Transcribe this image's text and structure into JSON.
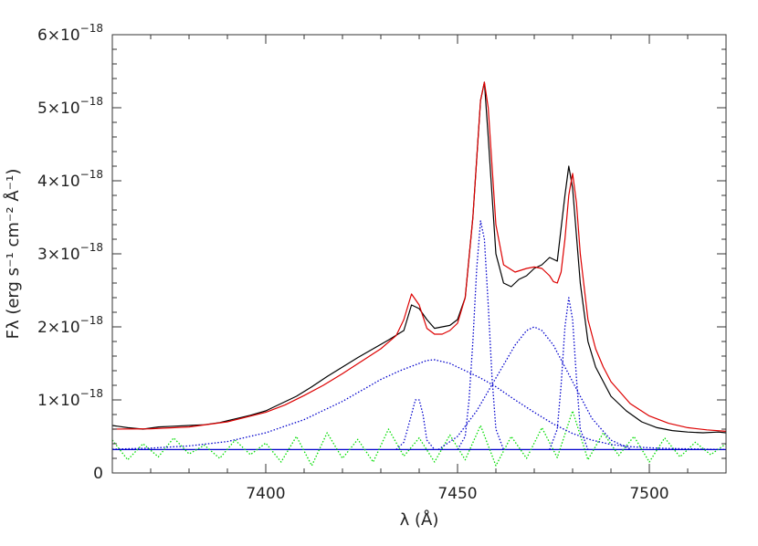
{
  "chart_data": {
    "type": "line",
    "title": "",
    "xlabel": "λ (Å)",
    "ylabel": "Fλ (erg s⁻¹ cm⁻² Å⁻¹)",
    "xlim": [
      7360,
      7520
    ],
    "ylim": [
      0,
      6e-18
    ],
    "grid": false,
    "legend": "none",
    "x_ticks": [
      {
        "value": 7400,
        "label": "7400"
      },
      {
        "value": 7450,
        "label": "7450"
      },
      {
        "value": 7500,
        "label": "7500"
      }
    ],
    "y_ticks": [
      {
        "value": 0,
        "mantissa": "0",
        "exponent": ""
      },
      {
        "value": 1e-18,
        "mantissa": "1×10",
        "exponent": "−18"
      },
      {
        "value": 2e-18,
        "mantissa": "2×10",
        "exponent": "−18"
      },
      {
        "value": 3e-18,
        "mantissa": "3×10",
        "exponent": "−18"
      },
      {
        "value": 4e-18,
        "mantissa": "4×10",
        "exponent": "−18"
      },
      {
        "value": 5e-18,
        "mantissa": "5×10",
        "exponent": "−18"
      },
      {
        "value": 6e-18,
        "mantissa": "6×10",
        "exponent": "−18"
      }
    ],
    "colors": {
      "observed": "#000000",
      "model": "#dd0000",
      "components": "#0000cc",
      "residual": "#00dd00",
      "continuum": "#0000cc"
    },
    "continuum": {
      "x": [
        7360,
        7520
      ],
      "y": [
        3.2e-19,
        3.2e-19
      ]
    },
    "series": [
      {
        "style": "solid",
        "color": "#000000",
        "x": [
          7360,
          7364,
          7368,
          7372,
          7376,
          7380,
          7384,
          7388,
          7392,
          7396,
          7400,
          7404,
          7408,
          7412,
          7416,
          7420,
          7424,
          7428,
          7432,
          7436,
          7438,
          7440,
          7442,
          7444,
          7446,
          7448,
          7450,
          7452,
          7454,
          7456,
          7457,
          7458,
          7460,
          7462,
          7464,
          7466,
          7468,
          7470,
          7472,
          7474,
          7476,
          7478,
          7479,
          7480,
          7482,
          7484,
          7486,
          7488,
          7490,
          7494,
          7498,
          7502,
          7506,
          7510,
          7514,
          7518,
          7520
        ],
        "y": [
          6.5e-19,
          6.2e-19,
          6e-19,
          6.3e-19,
          6.4e-19,
          6.5e-19,
          6.6e-19,
          6.9e-19,
          7.4e-19,
          7.9e-19,
          8.5e-19,
          9.5e-19,
          1.05e-18,
          1.18e-18,
          1.32e-18,
          1.45e-18,
          1.58e-18,
          1.7e-18,
          1.82e-18,
          1.95e-18,
          2.3e-18,
          2.25e-18,
          2.1e-18,
          1.98e-18,
          2e-18,
          2.02e-18,
          2.1e-18,
          2.4e-18,
          3.5e-18,
          5.1e-18,
          5.35e-18,
          4.6e-18,
          3e-18,
          2.6e-18,
          2.55e-18,
          2.65e-18,
          2.7e-18,
          2.8e-18,
          2.85e-18,
          2.95e-18,
          2.9e-18,
          3.8e-18,
          4.2e-18,
          3.9e-18,
          2.6e-18,
          1.8e-18,
          1.45e-18,
          1.25e-18,
          1.05e-18,
          8.5e-19,
          7e-19,
          6.2e-19,
          5.8e-19,
          5.6e-19,
          5.5e-19,
          5.6e-19,
          5.5e-19
        ]
      },
      {
        "style": "solid",
        "color": "#dd0000",
        "x": [
          7360,
          7370,
          7380,
          7390,
          7400,
          7405,
          7410,
          7415,
          7420,
          7425,
          7430,
          7434,
          7436,
          7438,
          7440,
          7442,
          7444,
          7446,
          7448,
          7450,
          7452,
          7454,
          7455,
          7456,
          7457,
          7458,
          7459,
          7460,
          7462,
          7465,
          7468,
          7470,
          7472,
          7474,
          7475,
          7476,
          7477,
          7478,
          7479,
          7480,
          7481,
          7482,
          7484,
          7486,
          7488,
          7490,
          7495,
          7500,
          7505,
          7510,
          7515,
          7520
        ],
        "y": [
          6e-19,
          6.05e-19,
          6.3e-19,
          7e-19,
          8.3e-19,
          9.3e-19,
          1.06e-18,
          1.2e-18,
          1.36e-18,
          1.53e-18,
          1.7e-18,
          1.88e-18,
          2.1e-18,
          2.45e-18,
          2.3e-18,
          1.98e-18,
          1.9e-18,
          1.9e-18,
          1.95e-18,
          2.05e-18,
          2.4e-18,
          3.5e-18,
          4.3e-18,
          5.1e-18,
          5.35e-18,
          5e-18,
          4.2e-18,
          3.4e-18,
          2.85e-18,
          2.75e-18,
          2.8e-18,
          2.82e-18,
          2.8e-18,
          2.7e-18,
          2.62e-18,
          2.6e-18,
          2.75e-18,
          3.2e-18,
          3.8e-18,
          4.1e-18,
          3.7e-18,
          3e-18,
          2.1e-18,
          1.7e-18,
          1.45e-18,
          1.25e-18,
          9.5e-19,
          7.8e-19,
          6.8e-19,
          6.2e-19,
          5.9e-19,
          5.7e-19
        ]
      },
      {
        "style": "dotted",
        "color": "#0000cc",
        "x": [
          7360,
          7370,
          7380,
          7390,
          7400,
          7410,
          7420,
          7430,
          7435,
          7440,
          7442,
          7444,
          7448,
          7452,
          7456,
          7460,
          7465,
          7470,
          7475,
          7480,
          7485,
          7490,
          7495,
          7500,
          7505,
          7510,
          7520
        ],
        "y": [
          3.25e-19,
          3.4e-19,
          3.7e-19,
          4.3e-19,
          5.5e-19,
          7.3e-19,
          9.8e-19,
          1.28e-18,
          1.4e-18,
          1.5e-18,
          1.54e-18,
          1.55e-18,
          1.5e-18,
          1.4e-18,
          1.3e-18,
          1.18e-18,
          1e-18,
          8.3e-19,
          6.7e-19,
          5.4e-19,
          4.5e-19,
          3.9e-19,
          3.6e-19,
          3.45e-19,
          3.35e-19,
          3.3e-19,
          3.2e-19
        ]
      },
      {
        "style": "dotted",
        "color": "#0000cc",
        "x": [
          7434,
          7436,
          7438,
          7439,
          7440,
          7441,
          7442,
          7444
        ],
        "y": [
          3.2e-19,
          4.2e-19,
          8e-19,
          1e-18,
          1e-18,
          8e-19,
          4.5e-19,
          3.2e-19
        ]
      },
      {
        "style": "dotted",
        "color": "#0000cc",
        "x": [
          7450,
          7452,
          7453,
          7454,
          7455,
          7456,
          7457,
          7458,
          7459,
          7460,
          7462
        ],
        "y": [
          3.2e-19,
          5e-19,
          1e-18,
          1.8e-18,
          2.8e-18,
          3.45e-18,
          3.2e-18,
          2.3e-18,
          1.3e-18,
          6e-19,
          3.2e-19
        ]
      },
      {
        "style": "dotted",
        "color": "#0000cc",
        "x": [
          7445,
          7450,
          7455,
          7460,
          7465,
          7468,
          7470,
          7472,
          7475,
          7480,
          7485,
          7490,
          7495
        ],
        "y": [
          3.2e-19,
          5e-19,
          8.5e-19,
          1.3e-18,
          1.75e-18,
          1.95e-18,
          2e-18,
          1.95e-18,
          1.75e-18,
          1.25e-18,
          7.5e-19,
          4.5e-19,
          3.3e-19
        ]
      },
      {
        "style": "dotted",
        "color": "#0000cc",
        "x": [
          7474,
          7476,
          7477,
          7478,
          7479,
          7480,
          7481,
          7482,
          7484
        ],
        "y": [
          3.2e-19,
          6e-19,
          1.2e-18,
          2e-18,
          2.4e-18,
          2.1e-18,
          1.3e-18,
          6e-19,
          3.2e-19
        ]
      },
      {
        "style": "dotted",
        "color": "#00dd00",
        "x": [
          7360,
          7364,
          7368,
          7372,
          7376,
          7380,
          7384,
          7388,
          7392,
          7396,
          7400,
          7404,
          7408,
          7412,
          7416,
          7420,
          7424,
          7428,
          7432,
          7436,
          7440,
          7444,
          7448,
          7452,
          7456,
          7460,
          7464,
          7468,
          7472,
          7476,
          7480,
          7484,
          7488,
          7492,
          7496,
          7500,
          7504,
          7508,
          7512,
          7516,
          7520
        ],
        "y": [
          4.5e-19,
          1.8e-19,
          4e-19,
          2.2e-19,
          4.8e-19,
          2.6e-19,
          3.8e-19,
          2e-19,
          4.5e-19,
          2.5e-19,
          4.1e-19,
          1.5e-19,
          5e-19,
          1e-19,
          5.5e-19,
          2e-19,
          4.6e-19,
          1.5e-19,
          6e-19,
          2.3e-19,
          4.8e-19,
          1.5e-19,
          5.2e-19,
          1.8e-19,
          6.5e-19,
          1e-19,
          5e-19,
          2e-19,
          6.2e-19,
          2.1e-19,
          8.5e-19,
          1.8e-19,
          5.5e-19,
          2.4e-19,
          5e-19,
          1.5e-19,
          4.8e-19,
          2.2e-19,
          4.2e-19,
          2.5e-19,
          4e-19
        ]
      }
    ]
  }
}
